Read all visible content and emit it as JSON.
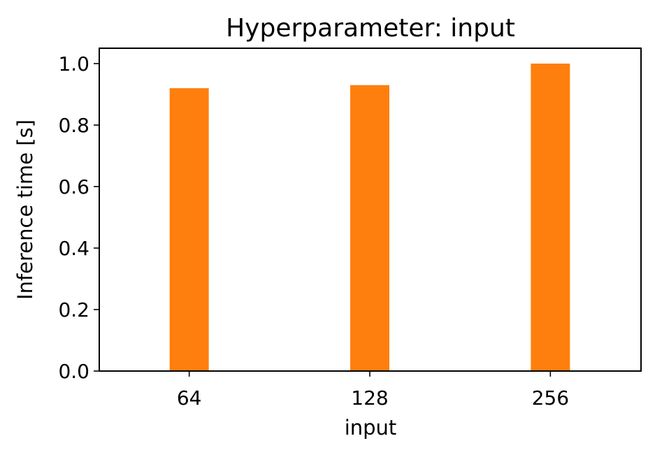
{
  "chart_data": {
    "type": "bar",
    "title": "Hyperparameter: input",
    "xlabel": "input",
    "ylabel": "Inference time [s]",
    "categories": [
      "64",
      "128",
      "256"
    ],
    "values": [
      0.92,
      0.93,
      1.0
    ],
    "ylim": [
      0,
      1.05
    ],
    "yticks": [
      "0.0",
      "0.2",
      "0.4",
      "0.6",
      "0.8",
      "1.0"
    ],
    "grid": false,
    "bar_color": "#ff7f0e"
  }
}
